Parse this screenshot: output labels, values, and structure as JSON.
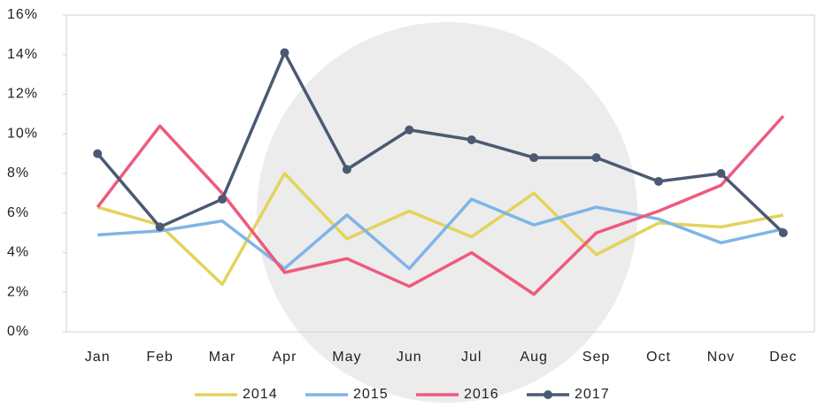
{
  "chart_data": {
    "type": "line",
    "categories": [
      "Jan",
      "Feb",
      "Mar",
      "Apr",
      "May",
      "Jun",
      "Jul",
      "Aug",
      "Sep",
      "Oct",
      "Nov",
      "Dec"
    ],
    "series": [
      {
        "name": "2014",
        "color": "#e3d35c",
        "values": [
          6.3,
          5.4,
          2.4,
          8.0,
          4.7,
          6.1,
          4.8,
          7.0,
          3.9,
          5.5,
          5.3,
          5.9
        ]
      },
      {
        "name": "2015",
        "color": "#7fb4e6",
        "values": [
          4.9,
          5.1,
          5.6,
          3.2,
          5.9,
          3.2,
          6.7,
          5.4,
          6.3,
          5.7,
          4.5,
          5.2
        ]
      },
      {
        "name": "2016",
        "color": "#ee5a7e",
        "values": [
          6.3,
          10.4,
          7.0,
          3.0,
          3.7,
          2.3,
          4.0,
          1.9,
          5.0,
          6.1,
          7.4,
          10.9
        ]
      },
      {
        "name": "2017",
        "color": "#4b5a72",
        "markers": true,
        "values": [
          9.0,
          5.3,
          6.7,
          14.1,
          8.2,
          10.2,
          9.7,
          8.8,
          8.8,
          7.6,
          8.0,
          5.0
        ]
      }
    ],
    "ylim": [
      0,
      16
    ],
    "yticks": [
      {
        "value": 0,
        "label": "0%"
      },
      {
        "value": 2,
        "label": "2%"
      },
      {
        "value": 4,
        "label": "4%"
      },
      {
        "value": 6,
        "label": "6%"
      },
      {
        "value": 8,
        "label": "8%"
      },
      {
        "value": 10,
        "label": "10%"
      },
      {
        "value": 12,
        "label": "12%"
      },
      {
        "value": 14,
        "label": "14%"
      },
      {
        "value": 16,
        "label": "16%"
      }
    ],
    "grid": false,
    "legend": "bottom"
  }
}
